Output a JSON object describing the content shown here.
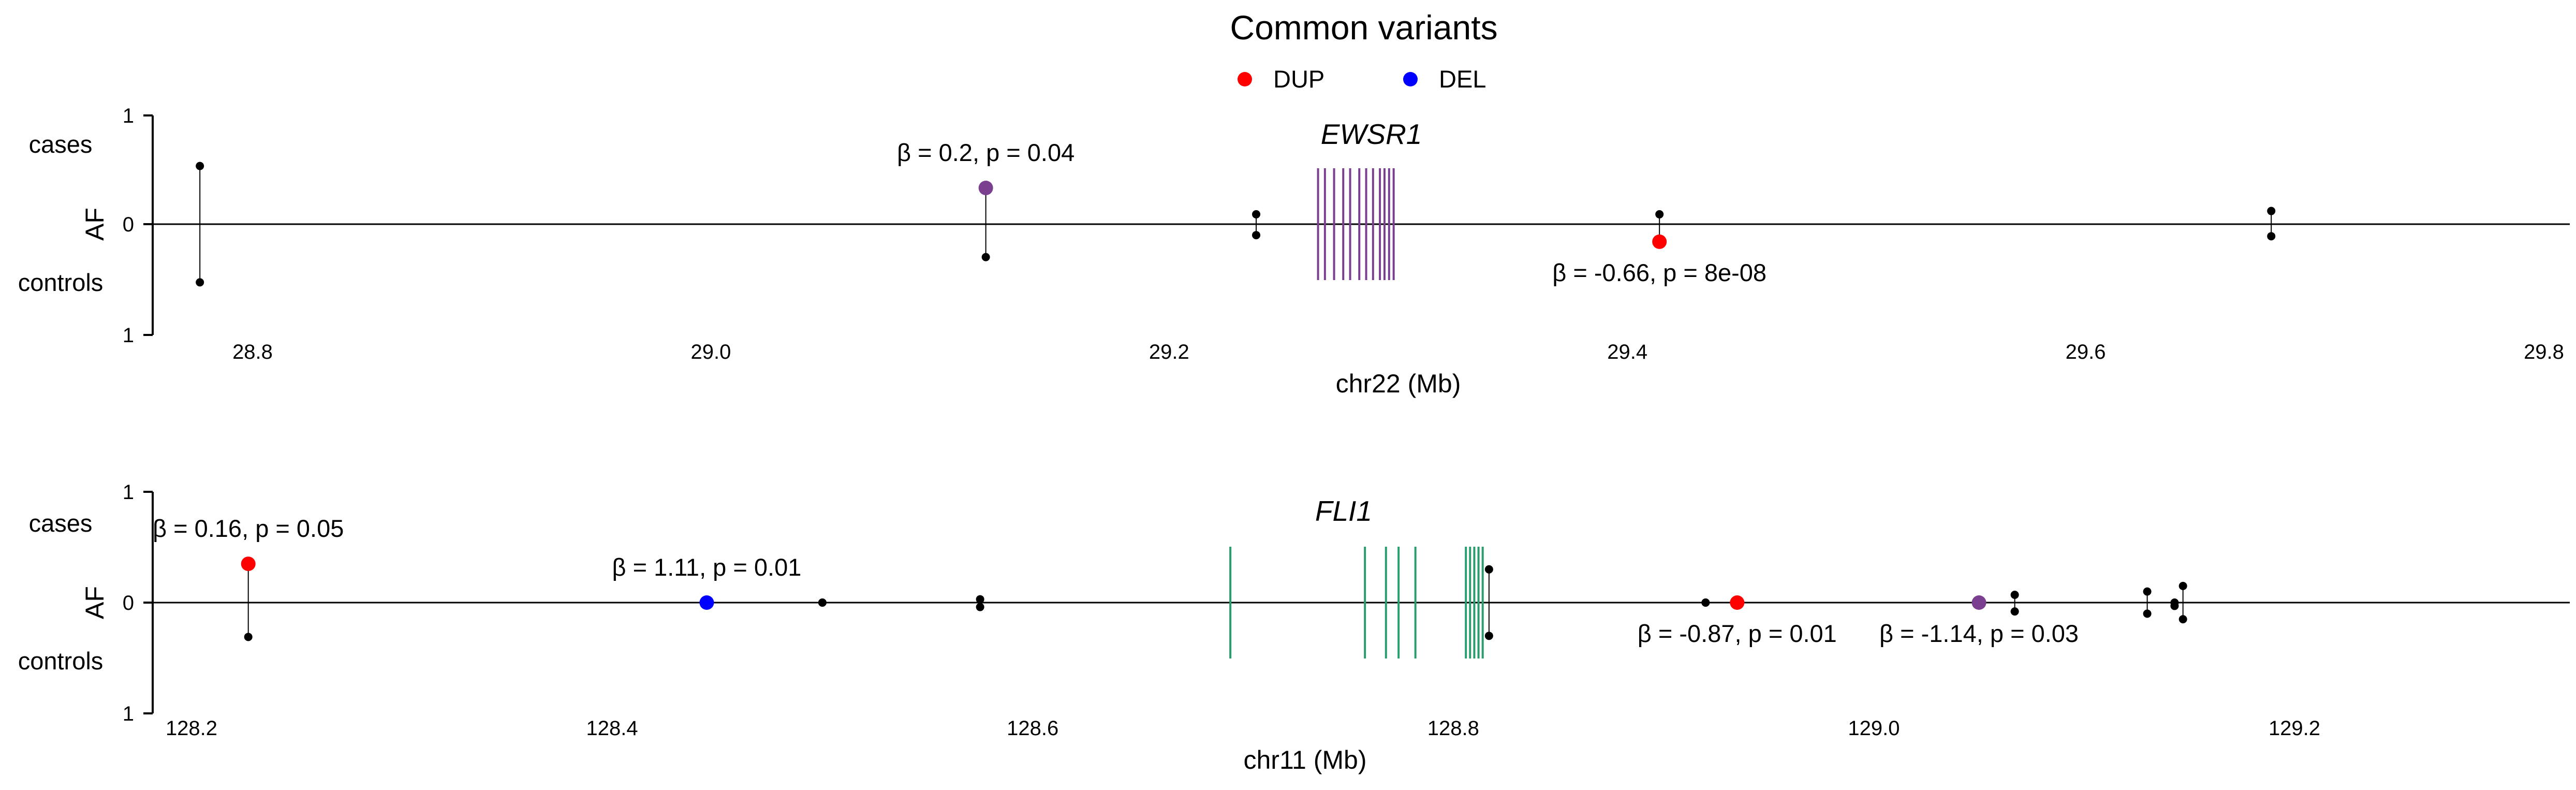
{
  "title": "Common variants",
  "legend": [
    {
      "label": "DUP",
      "color": "#ff0000"
    },
    {
      "label": "DEL",
      "color": "#0000ff"
    }
  ],
  "colors": {
    "dup": "#ff0000",
    "del": "#0000ff",
    "mixed": "#7b3f8f",
    "neutral": "#000000",
    "ewsr1_gene": "#7b3f8f",
    "fli1_gene": "#2a9d6f"
  },
  "chart_data": [
    {
      "type": "scatter",
      "xlabel": "chr22 (Mb)",
      "ylabel": "AF",
      "y_top_label": "cases",
      "y_bottom_label": "controls",
      "xlim": [
        28.73,
        29.81
      ],
      "ylim": [
        -1,
        1
      ],
      "y_ticks": [
        "1",
        "0",
        "1"
      ],
      "x_ticks": [
        "28.8",
        "29.0",
        "29.2",
        "29.4",
        "29.6",
        "29.8"
      ],
      "x_tick_values": [
        28.8,
        29.0,
        29.2,
        29.4,
        29.6,
        29.8
      ],
      "gene": {
        "name": "EWSR1",
        "start": 29.265,
        "end": 29.298,
        "exons": [
          29.265,
          29.268,
          29.272,
          29.276,
          29.279,
          29.283,
          29.286,
          29.289,
          29.292,
          29.294,
          29.296,
          29.298
        ]
      },
      "variants": [
        {
          "pos": 28.777,
          "case_af": 0.53,
          "control_af": 0.53,
          "type": "neutral"
        },
        {
          "pos": 29.12,
          "case_af": 0.33,
          "control_af": 0.3,
          "type": "mixed",
          "dot_side": "case",
          "annotation": "β = 0.2, p = 0.04",
          "annotation_side": "top"
        },
        {
          "pos": 29.238,
          "case_af": 0.09,
          "control_af": 0.1,
          "type": "neutral"
        },
        {
          "pos": 29.414,
          "case_af": 0.09,
          "control_af": 0.16,
          "type": "dup",
          "dot_side": "control",
          "annotation": "β = -0.66, p = 8e-08",
          "annotation_side": "bottom"
        },
        {
          "pos": 29.681,
          "case_af": 0.12,
          "control_af": 0.11,
          "type": "neutral"
        }
      ]
    },
    {
      "type": "scatter",
      "xlabel": "chr11 (Mb)",
      "ylabel": "AF",
      "y_top_label": "cases",
      "y_bottom_label": "controls",
      "xlim": [
        128.18,
        129.33
      ],
      "ylim": [
        -1,
        1
      ],
      "y_ticks": [
        "1",
        "0",
        "1"
      ],
      "x_ticks": [
        "128.2",
        "128.4",
        "128.6",
        "128.8",
        "129.0",
        "129.2"
      ],
      "x_tick_values": [
        128.2,
        128.4,
        128.6,
        128.8,
        129.0,
        129.2
      ],
      "gene": {
        "name": "FLI1",
        "start": 128.694,
        "end": 128.814,
        "exons": [
          128.694,
          128.758,
          128.768,
          128.774,
          128.782,
          128.806,
          128.808,
          128.81,
          128.812,
          128.814
        ]
      },
      "variants": [
        {
          "pos": 128.227,
          "case_af": 0.35,
          "control_af": 0.31,
          "type": "dup",
          "dot_side": "case",
          "annotation": "β = 0.16, p = 0.05",
          "annotation_side": "top"
        },
        {
          "pos": 128.445,
          "case_af": 0.0,
          "control_af": 0.0,
          "type": "del",
          "dot_side": "case",
          "annotation": "β = 1.11, p = 0.01",
          "annotation_side": "top"
        },
        {
          "pos": 128.5,
          "case_af": 0.0,
          "control_af": 0.0,
          "type": "neutral"
        },
        {
          "pos": 128.575,
          "case_af": 0.03,
          "control_af": 0.04,
          "type": "neutral"
        },
        {
          "pos": 128.817,
          "case_af": 0.3,
          "control_af": 0.3,
          "type": "neutral"
        },
        {
          "pos": 128.92,
          "case_af": 0.0,
          "control_af": 0.0,
          "type": "neutral"
        },
        {
          "pos": 128.935,
          "case_af": 0.0,
          "control_af": 0.0,
          "type": "dup",
          "dot_side": "case",
          "annotation": "β = -0.87, p = 0.01",
          "annotation_side": "bottom"
        },
        {
          "pos": 129.05,
          "case_af": 0.0,
          "control_af": 0.0,
          "type": "mixed",
          "dot_side": "case",
          "annotation": "β = -1.14, p = 0.03",
          "annotation_side": "bottom"
        },
        {
          "pos": 129.067,
          "case_af": 0.07,
          "control_af": 0.08,
          "type": "neutral"
        },
        {
          "pos": 129.13,
          "case_af": 0.1,
          "control_af": 0.1,
          "type": "neutral"
        },
        {
          "pos": 129.143,
          "case_af": 0.0,
          "control_af": 0.03,
          "type": "neutral"
        },
        {
          "pos": 129.147,
          "case_af": 0.15,
          "control_af": 0.15,
          "type": "neutral"
        }
      ]
    }
  ]
}
